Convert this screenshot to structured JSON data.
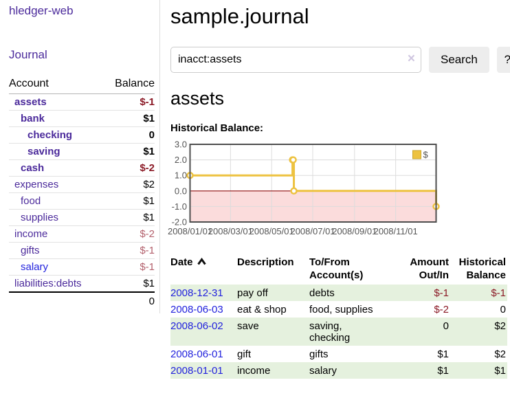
{
  "app": {
    "title": "hledger-web"
  },
  "sidebar": {
    "journal_link": "Journal",
    "accounts_table": {
      "account_header": "Account",
      "balance_header": "Balance",
      "rows": [
        {
          "name": "assets",
          "indent": 1,
          "bold": true,
          "balance": "$-1",
          "balance_style": "neg"
        },
        {
          "name": "bank",
          "indent": 2,
          "bold": true,
          "balance": "$1",
          "balance_style": ""
        },
        {
          "name": "checking",
          "indent": 3,
          "bold": true,
          "balance": "0",
          "balance_style": ""
        },
        {
          "name": "saving",
          "indent": 3,
          "bold": true,
          "balance": "$1",
          "balance_style": ""
        },
        {
          "name": "cash",
          "indent": 2,
          "bold": true,
          "balance": "$-2",
          "balance_style": "neg"
        },
        {
          "name": "expenses",
          "indent": 1,
          "bold": false,
          "balance": "$2",
          "balance_style": ""
        },
        {
          "name": "food",
          "indent": 2,
          "bold": false,
          "balance": "$1",
          "balance_style": ""
        },
        {
          "name": "supplies",
          "indent": 2,
          "bold": false,
          "balance": "$1",
          "balance_style": ""
        },
        {
          "name": "income",
          "indent": 1,
          "bold": false,
          "balance": "$-2",
          "balance_style": "neg-faded"
        },
        {
          "name": "gifts",
          "indent": 2,
          "bold": false,
          "balance": "$-1",
          "balance_style": "neg-faded"
        },
        {
          "name": "salary",
          "indent": 2,
          "bold": false,
          "link_color": "blue",
          "balance": "$-1",
          "balance_style": "neg-faded"
        },
        {
          "name": "liabilities:debts",
          "indent": 1,
          "bold": false,
          "balance": "$1",
          "balance_style": ""
        }
      ],
      "total": "0"
    }
  },
  "main": {
    "title": "sample.journal",
    "search": {
      "value": "inacct:assets",
      "clear_icon": "×",
      "button_label": "Search",
      "help_label": "?"
    },
    "account_heading": "assets",
    "chart_label": "Historical Balance:",
    "register": {
      "headers": {
        "date": "Date",
        "description": "Description",
        "tofrom": "To/From Account(s)",
        "amount": "Amount Out/In",
        "balance": "Historical Balance"
      },
      "rows": [
        {
          "date": "2008-12-31",
          "description": "pay off",
          "tofrom": "debts",
          "amount": "$-1",
          "amount_neg": true,
          "balance": "$-1",
          "balance_neg": true,
          "shaded": true
        },
        {
          "date": "2008-06-03",
          "description": "eat & shop",
          "tofrom": "food, supplies",
          "amount": "$-2",
          "amount_neg": true,
          "balance": "0",
          "balance_neg": false,
          "shaded": false
        },
        {
          "date": "2008-06-02",
          "description": "save",
          "tofrom": "saving, checking",
          "amount": "0",
          "amount_neg": false,
          "balance": "$2",
          "balance_neg": false,
          "shaded": true
        },
        {
          "date": "2008-06-01",
          "description": "gift",
          "tofrom": "gifts",
          "amount": "$1",
          "amount_neg": false,
          "balance": "$2",
          "balance_neg": false,
          "shaded": false
        },
        {
          "date": "2008-01-01",
          "description": "income",
          "tofrom": "salary",
          "amount": "$1",
          "amount_neg": false,
          "balance": "$1",
          "balance_neg": false,
          "shaded": true
        }
      ]
    }
  },
  "chart_data": {
    "type": "line",
    "title": "Historical Balance:",
    "legend": "$",
    "legend_position": "top-right",
    "x_start_date": "2008-01-01",
    "x_range_days": [
      0,
      365
    ],
    "ylim": [
      -2,
      3
    ],
    "grid": true,
    "y_ticks": [
      "3.0",
      "2.0",
      "1.0",
      "0.0",
      "-1.0",
      "-2.0"
    ],
    "y_tick_values": [
      3,
      2,
      1,
      0,
      -1,
      -2
    ],
    "x_ticks": [
      {
        "day": 0,
        "label": "2008/01/01"
      },
      {
        "day": 60,
        "label": "2008/03/01"
      },
      {
        "day": 121,
        "label": "2008/05/01"
      },
      {
        "day": 182,
        "label": "2008/07/01"
      },
      {
        "day": 244,
        "label": "2008/09/01"
      },
      {
        "day": 305,
        "label": "2008/11/01"
      }
    ],
    "series": [
      {
        "name": "$",
        "color": "#edc240",
        "step": true,
        "points": [
          [
            "2008-01-01",
            1
          ],
          [
            "2008-06-01",
            2
          ],
          [
            "2008-06-02",
            2
          ],
          [
            "2008-06-03",
            0
          ],
          [
            "2008-12-31",
            -1
          ]
        ]
      }
    ],
    "negative_region_color": "#fbdcdc",
    "zero_line_color": "#8f0d0d",
    "plot_border_color": "#4d4d4d",
    "gridline_color": "#dcdcdc",
    "axis_label_color": "#545454"
  }
}
